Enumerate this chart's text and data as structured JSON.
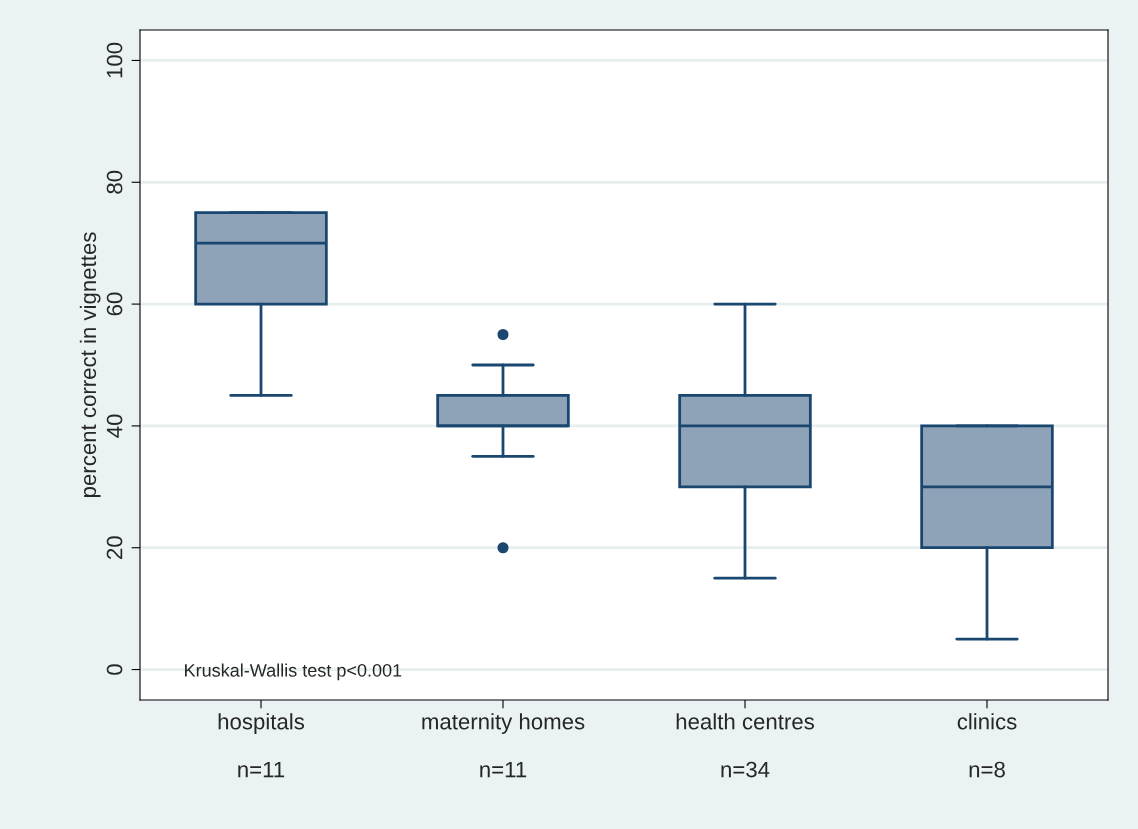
{
  "chart_data": {
    "type": "box",
    "ylabel": "percent correct in vignettes",
    "categories": [
      "hospitals\n\nn=11",
      "maternity homes\n\nn=11",
      "health centres\n\nn=34",
      "clinics\n\nn=8"
    ],
    "boxes": [
      {
        "low": 45,
        "q1": 60,
        "median": 70,
        "q3": 75,
        "high": 75
      },
      {
        "low": 35,
        "q1": 40,
        "median": 40,
        "q3": 45,
        "high": 50,
        "outliers": [
          55,
          20
        ]
      },
      {
        "low": 15,
        "q1": 30,
        "median": 40,
        "q3": 45,
        "high": 60
      },
      {
        "low": 5,
        "q1": 20,
        "median": 30,
        "q3": 40,
        "high": 40
      }
    ],
    "color": "#8fa3b8",
    "ylim": [
      -5,
      105
    ],
    "yticks": [
      0,
      20,
      40,
      60,
      80,
      100
    ],
    "grid": "y",
    "annotations": [
      "Kruskal-Wallis test p<0.001"
    ]
  }
}
